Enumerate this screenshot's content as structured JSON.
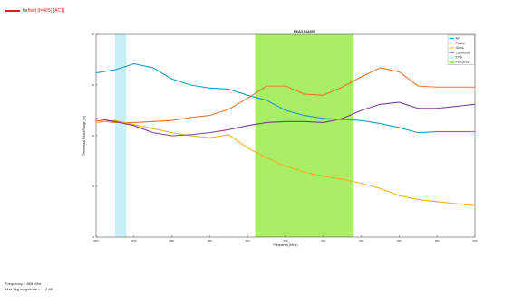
{
  "legend_top": {
    "label": "farfield (f=865) [AC1]",
    "color": "#d62020"
  },
  "footer": {
    "line1": "Frequency = 865 MHz",
    "line2": "Max bkg magnitude = ... 2 dB"
  },
  "chart_data": {
    "type": "line",
    "title": "READ RANGE",
    "xlabel": "Frequency (MHz)",
    "ylabel": "Theoretical Read Range (m)",
    "xlim": [
      860,
      960
    ],
    "ylim": [
      0,
      20
    ],
    "x_ticks": [
      860,
      870,
      880,
      890,
      900,
      910,
      920,
      930,
      940,
      950,
      960
    ],
    "y_ticks": [
      0,
      5,
      10,
      15,
      20
    ],
    "grid": false,
    "legend_position": "top-right",
    "bands": [
      {
        "name": "ETSI",
        "from": 865,
        "to": 868,
        "color": "#c8f0fa"
      },
      {
        "name": "FCC(US)",
        "from": 902,
        "to": 928,
        "color": "#aaee66"
      }
    ],
    "series": [
      {
        "name": "Air",
        "color": "#1a9bc6",
        "x": [
          860,
          865,
          870,
          875,
          880,
          885,
          890,
          895,
          900,
          905,
          910,
          915,
          920,
          925,
          930,
          935,
          940,
          945,
          950,
          955,
          960
        ],
        "y": [
          16.2,
          16.5,
          17.1,
          16.7,
          15.6,
          15.0,
          14.7,
          14.6,
          14.0,
          13.5,
          12.5,
          12.0,
          11.7,
          11.6,
          11.5,
          11.2,
          10.8,
          10.3,
          10.4,
          10.4,
          10.4
        ]
      },
      {
        "name": "Plastic",
        "color": "#e8772e",
        "x": [
          860,
          865,
          870,
          875,
          880,
          885,
          890,
          895,
          900,
          905,
          910,
          915,
          920,
          925,
          930,
          935,
          940,
          945,
          950,
          955,
          960
        ],
        "y": [
          11.5,
          11.3,
          11.3,
          11.4,
          11.5,
          11.8,
          12.0,
          12.6,
          13.7,
          14.9,
          14.9,
          14.1,
          14.0,
          14.8,
          15.8,
          16.7,
          16.3,
          14.9,
          14.8,
          14.8,
          14.8
        ]
      },
      {
        "name": "Glass",
        "color": "#f0b020",
        "x": [
          860,
          865,
          870,
          875,
          880,
          885,
          890,
          895,
          900,
          905,
          910,
          915,
          920,
          925,
          930,
          935,
          940,
          945,
          950,
          955,
          960
        ],
        "y": [
          11.3,
          11.5,
          11.1,
          10.7,
          10.3,
          10.0,
          9.8,
          10.1,
          8.8,
          7.8,
          7.0,
          6.4,
          6.0,
          5.7,
          5.3,
          4.8,
          4.1,
          3.7,
          3.5,
          3.3,
          3.1
        ]
      },
      {
        "name": "Cardboard",
        "color": "#7e3f98",
        "x": [
          860,
          865,
          870,
          875,
          880,
          885,
          890,
          895,
          900,
          905,
          910,
          915,
          920,
          925,
          930,
          935,
          940,
          945,
          950,
          955,
          960
        ],
        "y": [
          11.7,
          11.4,
          11.0,
          10.3,
          10.0,
          10.1,
          10.3,
          10.6,
          11.0,
          11.3,
          11.4,
          11.4,
          11.3,
          11.7,
          12.5,
          13.1,
          13.3,
          12.7,
          12.7,
          12.9,
          13.1
        ]
      }
    ]
  }
}
